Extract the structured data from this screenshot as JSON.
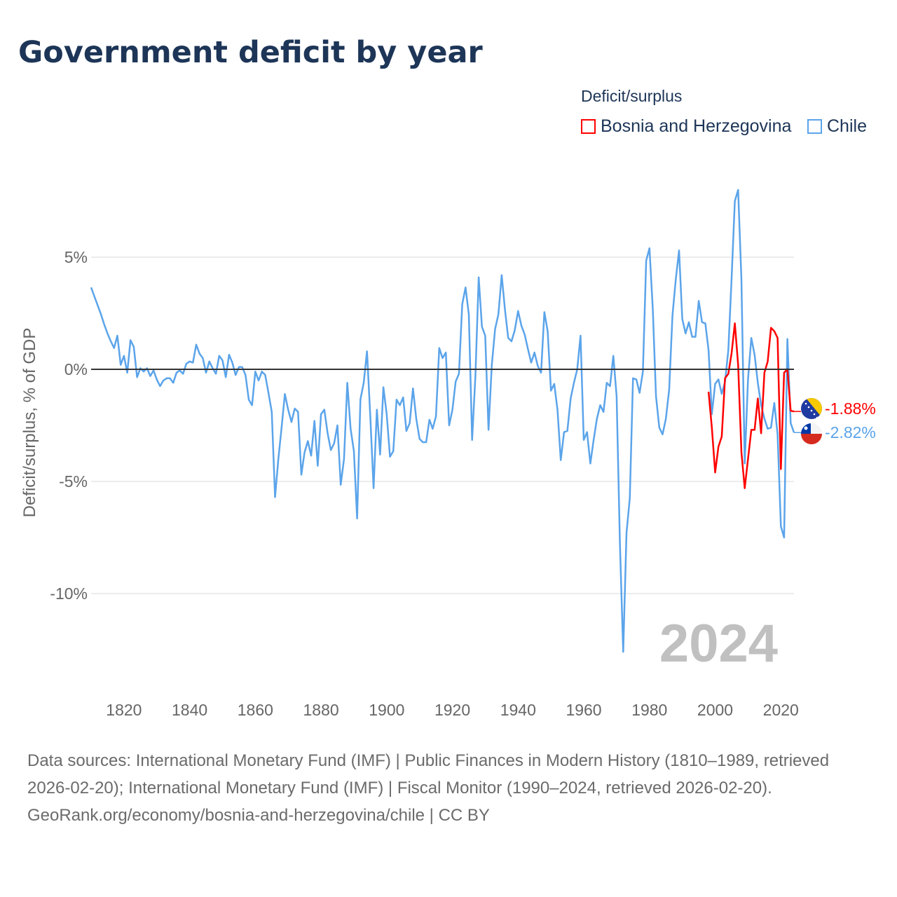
{
  "title": "Government deficit by year",
  "legend": {
    "title": "Deficit/surplus",
    "items": [
      {
        "label": "Bosnia and Herzegovina",
        "color": "#ff0000"
      },
      {
        "label": "Chile",
        "color": "#5ba4ea"
      }
    ]
  },
  "year_label": "2024",
  "footer": {
    "sources": "Data sources: International Monetary Fund (IMF) | Public Finances in Modern History (1810–1989, retrieved 2026-02-20); International Monetary Fund (IMF) | Fiscal Monitor (1990–2024, retrieved 2026-02-20).",
    "credit": "GeoRank.org/economy/bosnia-and-herzegovina/chile | CC BY"
  },
  "chart_data": {
    "type": "line",
    "title": "Government deficit by year",
    "xlabel": "",
    "ylabel": "Deficit/surplus, % of GDP",
    "xlim": [
      1810,
      2024
    ],
    "ylim": [
      -13,
      8.5
    ],
    "xticks": [
      "1820",
      "1840",
      "1860",
      "1880",
      "1900",
      "1920",
      "1940",
      "1960",
      "1980",
      "2000",
      "2020"
    ],
    "yticks": [
      {
        "value": 5,
        "label": "5%"
      },
      {
        "value": 0,
        "label": "0%"
      },
      {
        "value": -5,
        "label": "-5%"
      },
      {
        "value": -10,
        "label": "-10%"
      }
    ],
    "grid": true,
    "legend_position": "top-right",
    "series": [
      {
        "name": "Chile",
        "color": "#5ba4ea",
        "start_year": 1810,
        "end_label": "-2.82%",
        "values": [
          3.65,
          3.25,
          2.85,
          2.45,
          2.0,
          1.6,
          1.25,
          0.95,
          1.5,
          0.2,
          0.6,
          -0.15,
          1.3,
          1.0,
          -0.35,
          0.05,
          -0.1,
          0.05,
          -0.3,
          -0.05,
          -0.45,
          -0.75,
          -0.5,
          -0.4,
          -0.4,
          -0.6,
          -0.15,
          -0.05,
          -0.2,
          0.25,
          0.35,
          0.3,
          1.1,
          0.7,
          0.5,
          -0.15,
          0.35,
          0.05,
          -0.2,
          0.6,
          0.4,
          -0.35,
          0.65,
          0.3,
          -0.25,
          0.1,
          0.1,
          -0.25,
          -1.35,
          -1.6,
          -0.1,
          -0.5,
          -0.1,
          -0.25,
          -1.05,
          -1.9,
          -5.7,
          -4.0,
          -2.6,
          -1.1,
          -1.8,
          -2.35,
          -1.75,
          -1.9,
          -4.7,
          -3.7,
          -3.2,
          -3.85,
          -2.3,
          -4.3,
          -2.0,
          -1.8,
          -2.85,
          -3.6,
          -3.3,
          -2.5,
          -5.15,
          -4.0,
          -0.6,
          -2.65,
          -3.65,
          -6.65,
          -1.35,
          -0.6,
          0.8,
          -2.1,
          -5.3,
          -1.8,
          -3.8,
          -0.8,
          -2.0,
          -3.9,
          -3.65,
          -1.35,
          -1.6,
          -1.25,
          -2.75,
          -2.4,
          -0.85,
          -2.2,
          -3.1,
          -3.25,
          -3.25,
          -2.25,
          -2.65,
          -2.1,
          0.95,
          0.5,
          0.75,
          -2.5,
          -1.8,
          -0.55,
          -0.2,
          2.9,
          3.65,
          2.45,
          -3.15,
          -0.3,
          4.1,
          1.9,
          1.5,
          -2.7,
          0.2,
          1.8,
          2.45,
          4.2,
          2.65,
          1.4,
          1.25,
          1.75,
          2.6,
          1.95,
          1.55,
          0.9,
          0.3,
          0.75,
          0.15,
          -0.15,
          2.55,
          1.7,
          -0.95,
          -0.65,
          -1.8,
          -4.05,
          -2.8,
          -2.75,
          -1.3,
          -0.6,
          0.0,
          1.5,
          -3.15,
          -2.8,
          -4.2,
          -3.15,
          -2.2,
          -1.6,
          -1.9,
          -0.6,
          -0.75,
          0.6,
          -1.2,
          -7.75,
          -12.6,
          -7.3,
          -5.75,
          -0.4,
          -0.45,
          -1.05,
          -0.1,
          4.85,
          5.4,
          2.7,
          -1.2,
          -2.6,
          -2.9,
          -2.2,
          -0.9,
          2.4,
          4.0,
          5.3,
          2.25,
          1.6,
          2.1,
          1.45,
          1.45,
          3.05,
          2.1,
          2.05,
          0.85,
          -2.0,
          -0.65,
          -0.45,
          -1.1,
          -0.55,
          0.85,
          4.0,
          7.5,
          8.0,
          4.0,
          -4.2,
          -0.45,
          1.4,
          0.65,
          -0.6,
          -1.6,
          -2.2,
          -2.65,
          -2.6,
          -1.5,
          -2.9,
          -7.0,
          -7.5,
          1.35,
          -2.4,
          -2.82
        ]
      },
      {
        "name": "Bosnia and Herzegovina",
        "color": "#ff0000",
        "start_year": 1998,
        "end_label": "-1.88%",
        "values": [
          -1.0,
          -2.6,
          -4.6,
          -3.45,
          -3.0,
          -0.4,
          -0.2,
          0.7,
          2.05,
          0.2,
          -3.7,
          -5.3,
          -4.0,
          -2.7,
          -2.7,
          -1.3,
          -2.85,
          -0.15,
          0.35,
          1.85,
          1.7,
          1.4,
          -4.45,
          -0.15,
          0.0,
          -1.85,
          -1.88
        ]
      }
    ]
  }
}
